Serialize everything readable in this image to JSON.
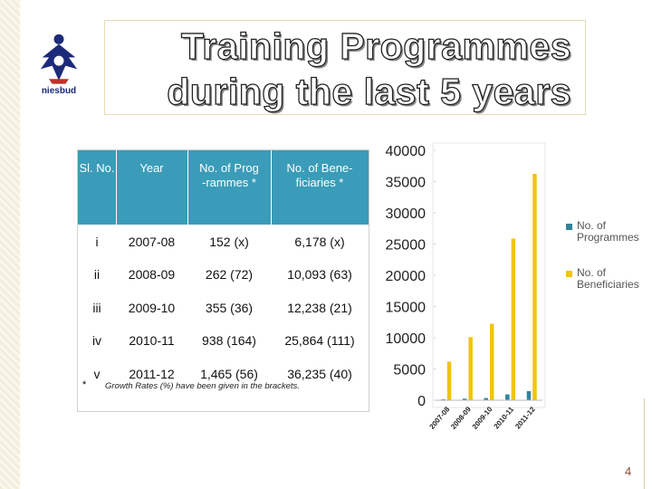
{
  "logo": {
    "text": "niesbud"
  },
  "header": {
    "title_lines": [
      "Training Programmes",
      "during the last  5 years"
    ]
  },
  "table": {
    "header": [
      "Sl. No.",
      "Year",
      "No. of Prog\n-rammes *",
      "No. of Bene-\nficiaries *"
    ],
    "rows": [
      [
        "i",
        "2007-08",
        "152 (x)",
        "6,178 (x)"
      ],
      [
        "ii",
        "2008-09",
        "262 (72)",
        "10,093 (63)"
      ],
      [
        "iii",
        "2009-10",
        "355  (36)",
        "12,238 (21)"
      ],
      [
        "iv",
        "2010-11",
        "938 (164)",
        "25,864 (111)"
      ],
      [
        "v",
        "2011-12",
        "1,465 (56)",
        "36,235  (40)"
      ]
    ],
    "footnote": {
      "mark": "*",
      "text": "Growth Rates (%) have been given in the brackets."
    }
  },
  "chart_data": {
    "type": "bar",
    "categories": [
      "2007-08",
      "2008-09",
      "2009-10",
      "2010-11",
      "2011-12"
    ],
    "series": [
      {
        "name": "No. of Programmes",
        "color": "#31849b",
        "values": [
          152,
          262,
          355,
          938,
          1465
        ]
      },
      {
        "name": "No. of Beneficiaries",
        "color": "#f2c314",
        "values": [
          6178,
          10093,
          12238,
          25864,
          36235
        ]
      }
    ],
    "ylim": [
      0,
      40000
    ],
    "yticks": [
      0,
      5000,
      10000,
      15000,
      20000,
      25000,
      30000,
      35000,
      40000
    ],
    "legend": "right"
  },
  "page_number": "4"
}
